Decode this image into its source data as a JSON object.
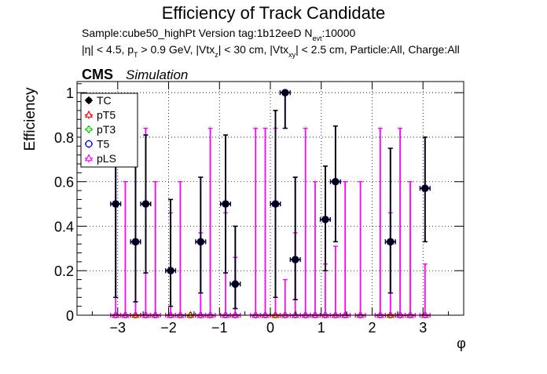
{
  "chart_data": {
    "type": "scatter",
    "title": "Efficiency of Track Candidate",
    "subtitle_line1": "Sample:cube50_highPt   Version tag:1b12eeD  N",
    "subtitle_line1_sub": "evt",
    "subtitle_line1_tail": ":10000",
    "subtitle_line2_parts": [
      "|η| < 4.5, p",
      "T",
      " > 0.9 GeV, |Vtx",
      "z",
      "| < 30 cm, |Vtx",
      "xy",
      "| < 2.5 cm, Particle:All, Charge:All"
    ],
    "cms_label": "CMS",
    "simulation_label": "Simulation",
    "xlabel": "φ",
    "ylabel": "Efficiency",
    "xlim": [
      -3.8,
      3.8
    ],
    "ylim": [
      0,
      1.05
    ],
    "x_ticks": [
      -3,
      -2,
      -1,
      0,
      1,
      2,
      3
    ],
    "x_tick_labels": [
      "−3",
      "−2",
      "−1",
      "0",
      "1",
      "2",
      "3"
    ],
    "y_ticks": [
      0,
      0.2,
      0.4,
      0.6,
      0.8,
      1
    ],
    "y_tick_labels": [
      "0",
      "0.2",
      "0.4",
      "0.6",
      "0.8",
      "1"
    ],
    "grid": true,
    "legend_position": "top-left",
    "legend": [
      {
        "label": "TC",
        "color": "#000000",
        "marker": "circle-filled"
      },
      {
        "label": "pT5",
        "color": "#ff0000",
        "marker": "triangle-open"
      },
      {
        "label": "pT3",
        "color": "#00cc00",
        "marker": "cross-open"
      },
      {
        "label": "T5",
        "color": "#0000ff",
        "marker": "circle-open"
      },
      {
        "label": "pLS",
        "color": "#ff00ff",
        "marker": "triangle-open"
      }
    ],
    "bin_half_width": 0.0982,
    "series": [
      {
        "name": "TC",
        "color": "#000000",
        "points": [
          {
            "x": -3.04,
            "y": 0.5,
            "lo": 0.08,
            "hi": 0.92
          },
          {
            "x": -2.65,
            "y": 0.33,
            "lo": 0.06,
            "hi": 0.75
          },
          {
            "x": -2.45,
            "y": 0.5,
            "lo": 0.19,
            "hi": 0.81
          },
          {
            "x": -1.96,
            "y": 0.2,
            "lo": 0.04,
            "hi": 0.52
          },
          {
            "x": -1.37,
            "y": 0.33,
            "lo": 0.1,
            "hi": 0.62
          },
          {
            "x": -0.88,
            "y": 0.5,
            "lo": 0.19,
            "hi": 0.81
          },
          {
            "x": -0.69,
            "y": 0.14,
            "lo": 0.03,
            "hi": 0.4
          },
          {
            "x": 0.1,
            "y": 0.5,
            "lo": 0.08,
            "hi": 0.92
          },
          {
            "x": 0.29,
            "y": 1.0,
            "lo": 0.84,
            "hi": 1.0
          },
          {
            "x": 0.49,
            "y": 0.25,
            "lo": 0.07,
            "hi": 0.62
          },
          {
            "x": 1.08,
            "y": 0.43,
            "lo": 0.2,
            "hi": 0.67
          },
          {
            "x": 1.28,
            "y": 0.6,
            "lo": 0.33,
            "hi": 0.85
          },
          {
            "x": 2.36,
            "y": 0.33,
            "lo": 0.1,
            "hi": 0.75
          },
          {
            "x": 3.04,
            "y": 0.57,
            "lo": 0.33,
            "hi": 0.8
          }
        ]
      },
      {
        "name": "T5",
        "color": "#0000ff",
        "points": [
          {
            "x": -3.04,
            "y": 0.5,
            "lo": 0.08,
            "hi": 0.92
          },
          {
            "x": -2.65,
            "y": 0.33,
            "lo": 0.06,
            "hi": 0.75
          },
          {
            "x": -2.45,
            "y": 0.5,
            "lo": 0.19,
            "hi": 0.81
          },
          {
            "x": -1.96,
            "y": 0.2,
            "lo": 0.04,
            "hi": 0.52
          },
          {
            "x": -1.37,
            "y": 0.33,
            "lo": 0.1,
            "hi": 0.62
          },
          {
            "x": -0.88,
            "y": 0.5,
            "lo": 0.19,
            "hi": 0.81
          },
          {
            "x": -0.69,
            "y": 0.14,
            "lo": 0.03,
            "hi": 0.4
          },
          {
            "x": 0.1,
            "y": 0.5,
            "lo": 0.08,
            "hi": 0.92
          },
          {
            "x": 0.29,
            "y": 1.0,
            "lo": 0.84,
            "hi": 1.0
          },
          {
            "x": 0.49,
            "y": 0.25,
            "lo": 0.07,
            "hi": 0.62
          },
          {
            "x": 1.08,
            "y": 0.43,
            "lo": 0.2,
            "hi": 0.67
          },
          {
            "x": 1.28,
            "y": 0.6,
            "lo": 0.33,
            "hi": 0.85
          },
          {
            "x": 2.36,
            "y": 0.33,
            "lo": 0.1,
            "hi": 0.75
          },
          {
            "x": 3.04,
            "y": 0.57,
            "lo": 0.33,
            "hi": 0.8
          }
        ]
      },
      {
        "name": "pLS",
        "color": "#ff00ff",
        "points": [
          {
            "x": -3.04,
            "y": 0.0,
            "lo": 0.0,
            "hi": 0.84
          },
          {
            "x": -2.85,
            "y": 0.0,
            "lo": 0.0,
            "hi": 0.6
          },
          {
            "x": -2.65,
            "y": 0.33,
            "lo": 0.0,
            "hi": 0.75
          },
          {
            "x": -2.45,
            "y": 0.0,
            "lo": 0.0,
            "hi": 0.84
          },
          {
            "x": -2.26,
            "y": 0.0,
            "lo": 0.0,
            "hi": 0.6
          },
          {
            "x": -1.96,
            "y": 0.0,
            "lo": 0.0,
            "hi": 0.46
          },
          {
            "x": -1.77,
            "y": 0.0,
            "lo": 0.0,
            "hi": 0.6
          },
          {
            "x": -1.37,
            "y": 0.0,
            "lo": 0.0,
            "hi": 0.37
          },
          {
            "x": -1.18,
            "y": 0.0,
            "lo": 0.0,
            "hi": 0.84
          },
          {
            "x": -0.88,
            "y": 0.0,
            "lo": 0.0,
            "hi": 0.46
          },
          {
            "x": -0.69,
            "y": 0.0,
            "lo": 0.0,
            "hi": 0.26
          },
          {
            "x": -0.29,
            "y": 0.0,
            "lo": 0.0,
            "hi": 0.84
          },
          {
            "x": -0.1,
            "y": 0.0,
            "lo": 0.0,
            "hi": 0.84
          },
          {
            "x": 0.1,
            "y": 0.5,
            "lo": 0.0,
            "hi": 0.84
          },
          {
            "x": 0.29,
            "y": 0.0,
            "lo": 0.0,
            "hi": 0.16
          },
          {
            "x": 0.49,
            "y": 0.0,
            "lo": 0.0,
            "hi": 0.37
          },
          {
            "x": 0.69,
            "y": 0.0,
            "lo": 0.0,
            "hi": 0.84
          },
          {
            "x": 0.88,
            "y": 0.0,
            "lo": 0.0,
            "hi": 0.6
          },
          {
            "x": 1.08,
            "y": 0.0,
            "lo": 0.0,
            "hi": 0.23
          },
          {
            "x": 1.28,
            "y": 0.0,
            "lo": 0.0,
            "hi": 0.31
          },
          {
            "x": 1.47,
            "y": 0.0,
            "lo": 0.0,
            "hi": 0.6
          },
          {
            "x": 1.77,
            "y": 0.0,
            "lo": 0.0,
            "hi": 0.6
          },
          {
            "x": 2.16,
            "y": 0.0,
            "lo": 0.0,
            "hi": 0.84
          },
          {
            "x": 2.36,
            "y": 0.33,
            "lo": 0.0,
            "hi": 0.46
          },
          {
            "x": 2.55,
            "y": 0.0,
            "lo": 0.0,
            "hi": 0.84
          },
          {
            "x": 2.75,
            "y": 0.0,
            "lo": 0.0,
            "hi": 0.6
          },
          {
            "x": 3.04,
            "y": 0.0,
            "lo": 0.0,
            "hi": 0.23
          }
        ]
      },
      {
        "name": "pT5",
        "color": "#ff0000",
        "points": [
          {
            "x": -3.04,
            "y": 0.0
          },
          {
            "x": -2.85,
            "y": 0.0
          },
          {
            "x": -2.65,
            "y": 0.0
          },
          {
            "x": -2.45,
            "y": 0.0
          },
          {
            "x": -2.26,
            "y": 0.0
          },
          {
            "x": -1.96,
            "y": 0.0
          },
          {
            "x": -1.77,
            "y": 0.0
          },
          {
            "x": -1.57,
            "y": 0.0
          },
          {
            "x": -1.37,
            "y": 0.0
          },
          {
            "x": -1.18,
            "y": 0.0
          },
          {
            "x": -0.88,
            "y": 0.0
          },
          {
            "x": -0.69,
            "y": 0.0
          },
          {
            "x": -0.29,
            "y": 0.0
          },
          {
            "x": -0.1,
            "y": 0.0
          },
          {
            "x": 0.1,
            "y": 0.0
          },
          {
            "x": 0.29,
            "y": 0.0
          },
          {
            "x": 0.49,
            "y": 0.0
          },
          {
            "x": 0.69,
            "y": 0.0
          },
          {
            "x": 0.88,
            "y": 0.0
          },
          {
            "x": 1.08,
            "y": 0.0
          },
          {
            "x": 1.28,
            "y": 0.0
          },
          {
            "x": 1.47,
            "y": 0.0
          },
          {
            "x": 1.77,
            "y": 0.0
          },
          {
            "x": 2.16,
            "y": 0.0
          },
          {
            "x": 2.36,
            "y": 0.0
          },
          {
            "x": 2.55,
            "y": 0.0
          },
          {
            "x": 2.75,
            "y": 0.0
          },
          {
            "x": 3.04,
            "y": 0.0
          }
        ]
      },
      {
        "name": "pT3",
        "color": "#00cc00",
        "points": [
          {
            "x": -3.04,
            "y": 0.0
          },
          {
            "x": -2.85,
            "y": 0.0
          },
          {
            "x": -2.65,
            "y": 0.0
          },
          {
            "x": -2.45,
            "y": 0.0
          },
          {
            "x": -2.26,
            "y": 0.0
          },
          {
            "x": -1.96,
            "y": 0.0
          },
          {
            "x": -1.77,
            "y": 0.0
          },
          {
            "x": -1.57,
            "y": 0.0
          },
          {
            "x": -1.37,
            "y": 0.0
          },
          {
            "x": -1.18,
            "y": 0.0
          },
          {
            "x": -0.88,
            "y": 0.0
          },
          {
            "x": -0.69,
            "y": 0.0
          },
          {
            "x": -0.29,
            "y": 0.0
          },
          {
            "x": -0.1,
            "y": 0.0
          },
          {
            "x": 0.1,
            "y": 0.0
          },
          {
            "x": 0.29,
            "y": 0.0
          },
          {
            "x": 0.49,
            "y": 0.0
          },
          {
            "x": 0.69,
            "y": 0.0
          },
          {
            "x": 0.88,
            "y": 0.0
          },
          {
            "x": 1.08,
            "y": 0.0
          },
          {
            "x": 1.28,
            "y": 0.0
          },
          {
            "x": 1.47,
            "y": 0.0
          },
          {
            "x": 1.77,
            "y": 0.0
          },
          {
            "x": 2.16,
            "y": 0.0
          },
          {
            "x": 2.36,
            "y": 0.0
          },
          {
            "x": 2.55,
            "y": 0.0
          },
          {
            "x": 2.75,
            "y": 0.0
          },
          {
            "x": 3.04,
            "y": 0.0
          }
        ]
      }
    ]
  }
}
